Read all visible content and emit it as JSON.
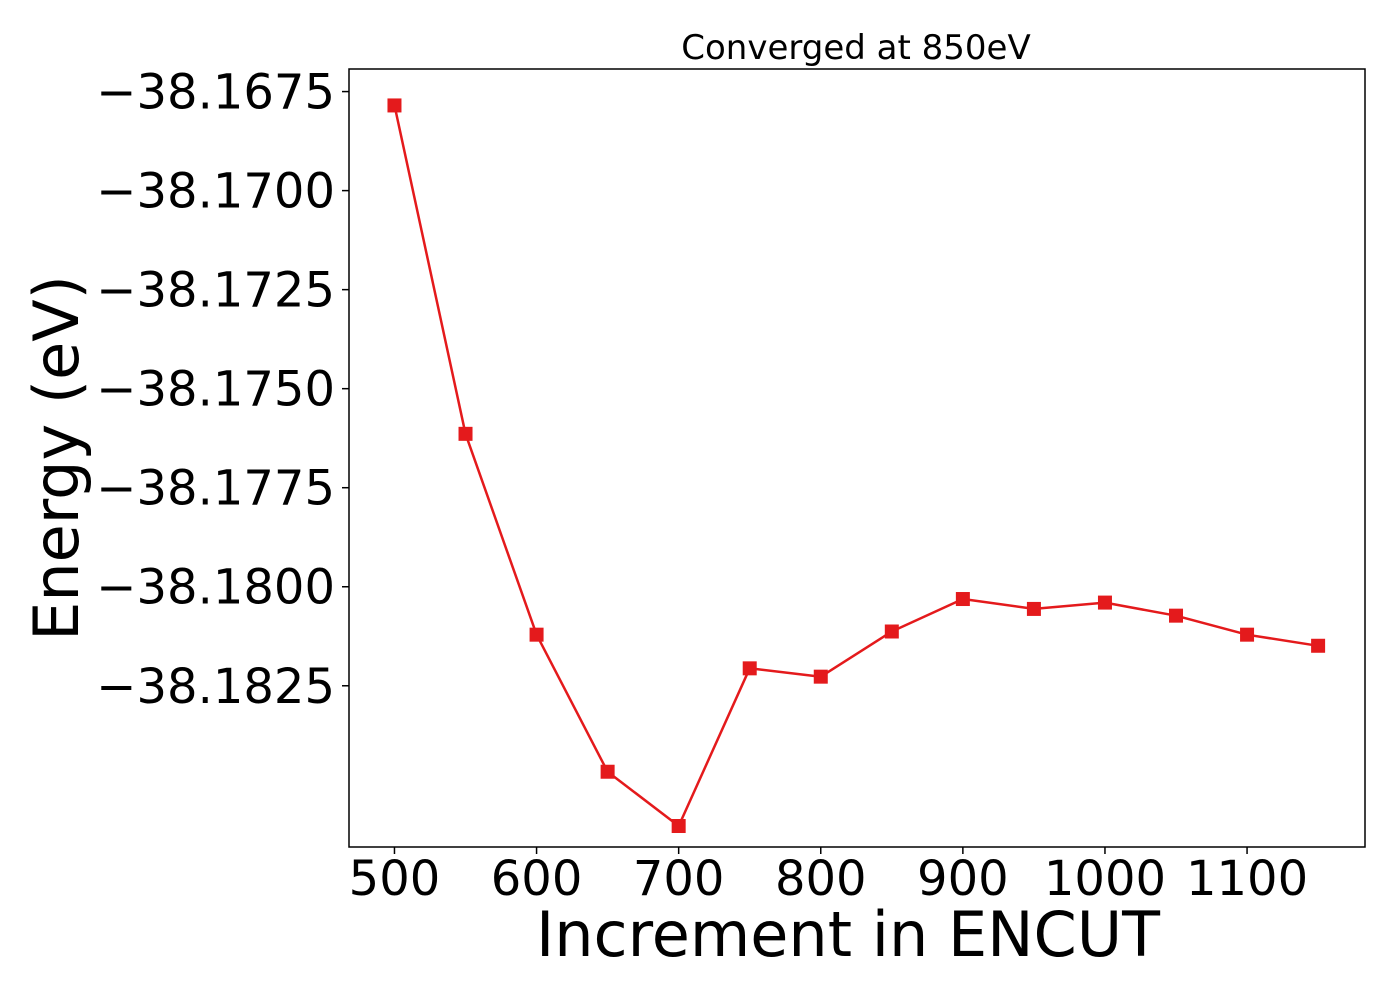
{
  "chart_data": {
    "type": "line",
    "title": "Converged at 850eV",
    "xlabel": "Increment in ENCUT",
    "ylabel": "Energy (eV)",
    "x": [
      500,
      550,
      600,
      650,
      700,
      750,
      800,
      850,
      900,
      950,
      1000,
      1050,
      1100,
      1150
    ],
    "series": [
      {
        "values": [
          -38.16785,
          -38.17614,
          -38.18121,
          -38.18467,
          -38.18604,
          -38.18206,
          -38.18227,
          -38.18113,
          -38.18031,
          -38.18056,
          -38.1804,
          -38.18073,
          -38.18121,
          -38.18149
        ],
        "color": "#e41a1c",
        "marker": "square"
      }
    ],
    "xticks": [
      500,
      600,
      700,
      800,
      900,
      1000,
      1100
    ],
    "xtick_labels": [
      "500",
      "600",
      "700",
      "800",
      "900",
      "1000",
      "1100"
    ],
    "yticks": [
      -38.1825,
      -38.18,
      -38.1775,
      -38.175,
      -38.1725,
      -38.17,
      -38.1675
    ],
    "ytick_labels": [
      "−38.1825",
      "−38.1800",
      "−38.1775",
      "−38.1750",
      "−38.1725",
      "−38.1700",
      "−38.1675"
    ],
    "xlim": [
      468,
      1183
    ],
    "ylim": [
      -38.18657,
      -38.16693
    ],
    "grid": false,
    "legend": "none"
  }
}
